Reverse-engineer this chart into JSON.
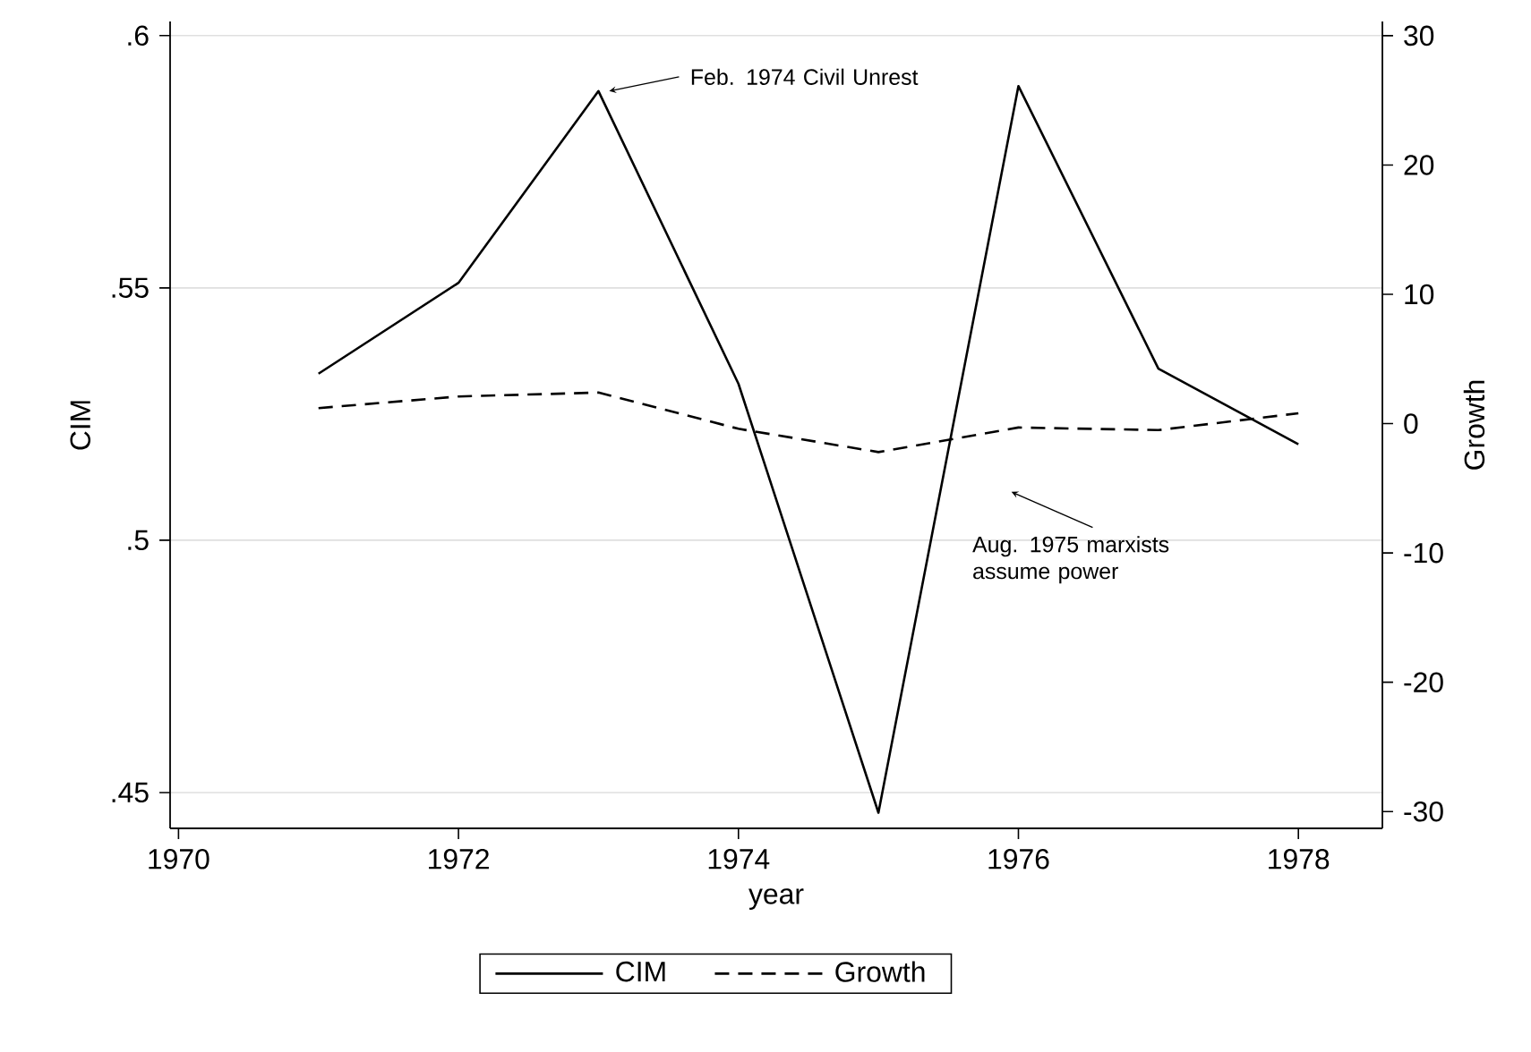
{
  "chart_data": {
    "type": "line",
    "xlabel": "year",
    "ylabel": "CIM",
    "y2label": "Growth",
    "x": [
      1971,
      1972,
      1973,
      1974,
      1975,
      1976,
      1977,
      1978
    ],
    "series": [
      {
        "name": "CIM",
        "color": "#000000",
        "line_style": "solid",
        "values": [
          0.533,
          0.551,
          0.589,
          0.531,
          0.446,
          0.59,
          0.534,
          0.519
        ]
      },
      {
        "name": "Growth",
        "color": "#000000",
        "line_style": "dashed",
        "axis": "y2",
        "values": [
          1.2,
          2.1,
          2.4,
          -0.4,
          -2.2,
          -0.3,
          -0.5,
          0.8
        ]
      }
    ],
    "xlim": [
      1969.94,
      1978.6
    ],
    "xticks": [
      1970,
      1972,
      1974,
      1976,
      1978
    ],
    "ylim": [
      0.4429,
      0.6028
    ],
    "yticks": [
      {
        "value": 0.45,
        "label": ".45"
      },
      {
        "value": 0.5,
        "label": ".5"
      },
      {
        "value": 0.55,
        "label": ".55"
      },
      {
        "value": 0.6,
        "label": ".6"
      }
    ],
    "y2lim": [
      -31.3,
      31.1
    ],
    "y2ticks": [
      -30,
      -20,
      -10,
      0,
      10,
      20,
      30
    ],
    "grid": "y",
    "legend": "bottom",
    "marker": "none",
    "annotations": [
      {
        "text": "Feb. 1974 Civil Unrest",
        "x": 1973,
        "y": 0.589
      },
      "Aug. 1975 marxists assume power"
    ]
  }
}
